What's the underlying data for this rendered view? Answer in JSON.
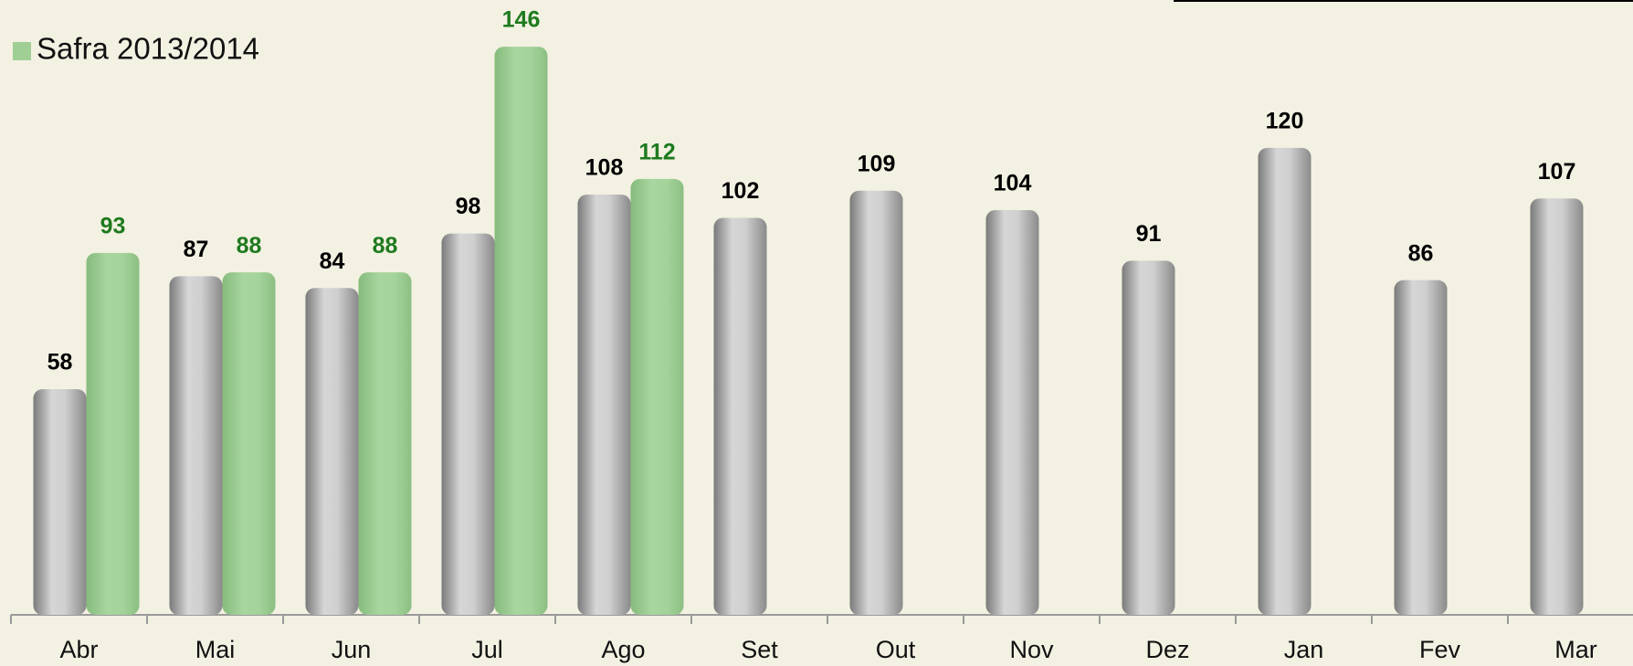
{
  "chart_data": {
    "type": "bar",
    "categories": [
      "Abr",
      "Mai",
      "Jun",
      "Jul",
      "Ago",
      "Set",
      "Out",
      "Nov",
      "Dez",
      "Jan",
      "Fev",
      "Mar"
    ],
    "series": [
      {
        "color": "#bdbdbd",
        "values": [
          58,
          87,
          84,
          98,
          108,
          102,
          109,
          104,
          91,
          120,
          86,
          107
        ]
      },
      {
        "name": "Safra 2013/2014",
        "color": "#9fcf95",
        "values": [
          93,
          88,
          88,
          146,
          112,
          null,
          null,
          null,
          null,
          null,
          null,
          null
        ]
      }
    ],
    "ylim": [
      0,
      158
    ],
    "legend": "top-left"
  }
}
